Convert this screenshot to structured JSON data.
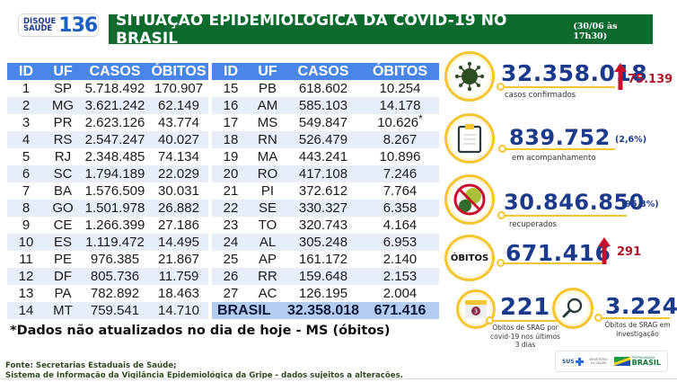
{
  "header": {
    "logo": {
      "line1": "DISQUE",
      "line2": "SAÚDE",
      "number": "136"
    },
    "title": "SITUAÇÃO EPIDEMIOLÓGICA DA COVID-19 NO BRASIL",
    "datetime": "(30/06 às 17h30)",
    "title_bg_color": "#0d6b30"
  },
  "table": {
    "columns": [
      "ID",
      "UF",
      "CASOS",
      "ÓBITOS"
    ],
    "header_color": "#4a86e8",
    "left_rows": [
      {
        "id": "1",
        "uf": "SP",
        "casos": "5.718.492",
        "obitos": "170.907"
      },
      {
        "id": "2",
        "uf": "MG",
        "casos": "3.621.242",
        "obitos": "62.149"
      },
      {
        "id": "3",
        "uf": "PR",
        "casos": "2.623.126",
        "obitos": "43.774"
      },
      {
        "id": "4",
        "uf": "RS",
        "casos": "2.547.247",
        "obitos": "40.027"
      },
      {
        "id": "5",
        "uf": "RJ",
        "casos": "2.348.485",
        "obitos": "74.134"
      },
      {
        "id": "6",
        "uf": "SC",
        "casos": "1.794.189",
        "obitos": "22.029"
      },
      {
        "id": "7",
        "uf": "BA",
        "casos": "1.576.509",
        "obitos": "30.031"
      },
      {
        "id": "8",
        "uf": "GO",
        "casos": "1.501.978",
        "obitos": "26.882"
      },
      {
        "id": "9",
        "uf": "CE",
        "casos": "1.266.399",
        "obitos": "27.186"
      },
      {
        "id": "10",
        "uf": "ES",
        "casos": "1.119.472",
        "obitos": "14.495"
      },
      {
        "id": "11",
        "uf": "PE",
        "casos": "976.385",
        "obitos": "21.867"
      },
      {
        "id": "12",
        "uf": "DF",
        "casos": "805.736",
        "obitos": "11.759"
      },
      {
        "id": "13",
        "uf": "PA",
        "casos": "782.892",
        "obitos": "18.463"
      },
      {
        "id": "14",
        "uf": "MT",
        "casos": "759.541",
        "obitos": "14.710"
      }
    ],
    "right_rows": [
      {
        "id": "15",
        "uf": "PB",
        "casos": "618.602",
        "obitos": "10.254"
      },
      {
        "id": "16",
        "uf": "AM",
        "casos": "585.103",
        "obitos": "14.178"
      },
      {
        "id": "17",
        "uf": "MS",
        "casos": "549.847",
        "obitos": "10.626",
        "mark": "*"
      },
      {
        "id": "18",
        "uf": "RN",
        "casos": "526.479",
        "obitos": "8.267"
      },
      {
        "id": "19",
        "uf": "MA",
        "casos": "443.241",
        "obitos": "10.896"
      },
      {
        "id": "20",
        "uf": "RO",
        "casos": "417.108",
        "obitos": "7.246"
      },
      {
        "id": "21",
        "uf": "PI",
        "casos": "372.612",
        "obitos": "7.764"
      },
      {
        "id": "22",
        "uf": "SE",
        "casos": "330.327",
        "obitos": "6.358"
      },
      {
        "id": "23",
        "uf": "TO",
        "casos": "320.743",
        "obitos": "4.164"
      },
      {
        "id": "24",
        "uf": "AL",
        "casos": "305.248",
        "obitos": "6.953"
      },
      {
        "id": "25",
        "uf": "AP",
        "casos": "161.172",
        "obitos": "2.140"
      },
      {
        "id": "26",
        "uf": "RR",
        "casos": "159.648",
        "obitos": "2.153"
      },
      {
        "id": "27",
        "uf": "AC",
        "casos": "126.195",
        "obitos": "2.004"
      }
    ],
    "total": {
      "label": "BRASIL",
      "casos": "32.358.018",
      "obitos": "671.416"
    }
  },
  "note": "*Dados não atualizados no dia de hoje - MS (óbitos)",
  "source": {
    "line1": "Fonte: Secretarias Estaduais de Saúde;",
    "line2": "Sistema de Informação da Vigilância Epidemiológica da Gripe - dados sujeitos a alterações."
  },
  "stats": {
    "confirmed": {
      "value": "32.358.018",
      "label": "casos confirmados",
      "delta": "75.139",
      "icon": "virus-icon"
    },
    "monitoring": {
      "value": "839.752",
      "label": "em acompanhamento",
      "percent": "(2,6%)",
      "icon": "clipboard-icon"
    },
    "recovered": {
      "value": "30.846.850",
      "label": "recuperados",
      "percent": "(95,3%)",
      "icon": "no-virus-icon"
    },
    "deaths": {
      "badge": "ÓBITOS",
      "value": "671.416",
      "delta": "291"
    },
    "srag_recent": {
      "value": "221",
      "label_lines": [
        "Óbitos de SRAG por",
        "covid-19 nos últimos",
        "3 dias"
      ],
      "calendar_number": "3",
      "icon": "calendar-icon"
    },
    "srag_investigation": {
      "value": "3.224",
      "label_lines": [
        "Óbitos de SRAG em",
        "investigação"
      ],
      "icon": "magnifier-icon"
    }
  },
  "colors": {
    "accent_blue": "#1b3a8c",
    "ring_yellow": "#f2c531",
    "delta_red": "#b0182a",
    "row_alt": "#e8eef9",
    "total_row": "#b4ccf0"
  },
  "footer_logos": {
    "sus": "SUS",
    "ministry": "MINISTÉRIO DA SAÚDE",
    "gov_top": "PÁTRIA AMADA",
    "gov_main": "BRASIL"
  }
}
